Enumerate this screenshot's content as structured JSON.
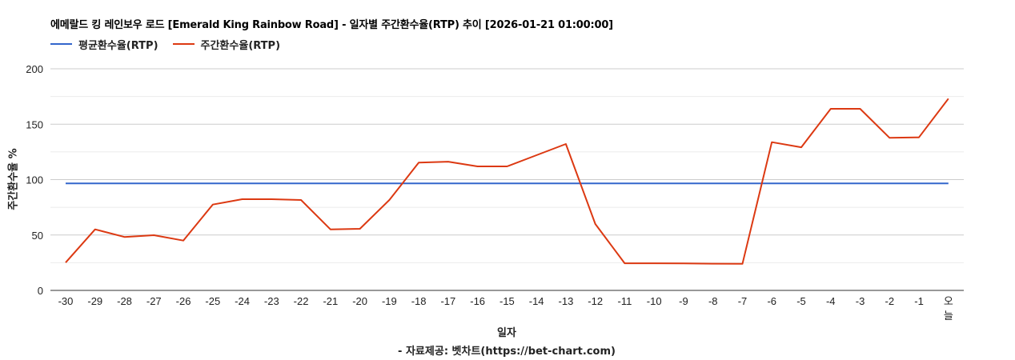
{
  "title": "에메랄드 킹 레인보우 로드 [Emerald King Rainbow Road] - 일자별 주간환수율(RTP) 추이 [2026-01-21 01:00:00]",
  "legend": [
    {
      "label": "평균환수율(RTP)",
      "color": "#3366cc"
    },
    {
      "label": "주간환수율(RTP)",
      "color": "#dc3912"
    }
  ],
  "source_text": "- 자료제공: 벳차트(https://bet-chart.com)",
  "chart_data": {
    "type": "line",
    "title": "에메랄드 킹 레인보우 로드 [Emerald King Rainbow Road] - 일자별 주간환수율(RTP) 추이 [2026-01-21 01:00:00]",
    "xlabel": "일자",
    "ylabel": "주간환수율 %",
    "ylim": [
      0,
      200
    ],
    "yticks": [
      0,
      50,
      100,
      150,
      200
    ],
    "minor_gridlines": [
      25,
      75,
      125,
      175
    ],
    "grid": true,
    "legend_position": "top",
    "categories": [
      "-30",
      "-29",
      "-28",
      "-27",
      "-26",
      "-25",
      "-24",
      "-23",
      "-22",
      "-21",
      "-20",
      "-19",
      "-18",
      "-17",
      "-16",
      "-15",
      "-14",
      "-13",
      "-12",
      "-11",
      "-10",
      "-9",
      "-8",
      "-7",
      "-6",
      "-5",
      "-4",
      "-3",
      "-2",
      "-1",
      "오늘"
    ],
    "series": [
      {
        "name": "평균환수율(RTP)",
        "color": "#3366cc",
        "values": [
          96.5,
          96.5,
          96.5,
          96.5,
          96.5,
          96.5,
          96.5,
          96.5,
          96.5,
          96.5,
          96.5,
          96.5,
          96.5,
          96.5,
          96.5,
          96.5,
          96.5,
          96.5,
          96.5,
          96.5,
          96.5,
          96.5,
          96.5,
          96.5,
          96.5,
          96.5,
          96.5,
          96.5,
          96.5,
          96.5,
          96.5
        ]
      },
      {
        "name": "주간환수율(RTP)",
        "color": "#dc3912",
        "values": [
          25.1,
          55.1,
          48.2,
          49.8,
          45.0,
          77.5,
          82.3,
          82.3,
          81.6,
          55.1,
          55.6,
          81.6,
          115.3,
          116.2,
          111.9,
          111.9,
          122.0,
          132.1,
          59.9,
          24.5,
          24.5,
          24.4,
          24.1,
          24.0,
          133.8,
          129.2,
          163.9,
          163.9,
          137.7,
          138.1,
          173.1
        ]
      }
    ]
  }
}
